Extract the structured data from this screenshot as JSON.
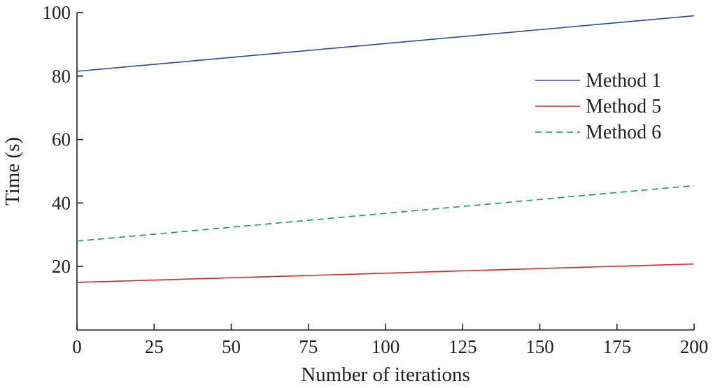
{
  "chart_data": {
    "type": "line",
    "xlabel": "Number of iterations",
    "ylabel": "Time (s)",
    "xlim": [
      0,
      200
    ],
    "ylim": [
      0,
      100
    ],
    "xticks": [
      0,
      25,
      50,
      75,
      100,
      125,
      150,
      175,
      200
    ],
    "yticks": [
      20,
      40,
      60,
      80,
      100
    ],
    "grid": false,
    "legend_position": "top-right",
    "series": [
      {
        "name": "Method 1",
        "color": "#2e4a9a",
        "dash": "solid",
        "x": [
          0,
          200
        ],
        "y": [
          81.5,
          99
        ]
      },
      {
        "name": "Method 5",
        "color": "#d62728",
        "dash": "solid",
        "x": [
          0,
          200
        ],
        "y": [
          15,
          20.8
        ]
      },
      {
        "name": "Method 6",
        "color": "#1a9a50",
        "dash": "dashed",
        "x": [
          0,
          200
        ],
        "y": [
          28,
          45.5
        ]
      }
    ]
  }
}
